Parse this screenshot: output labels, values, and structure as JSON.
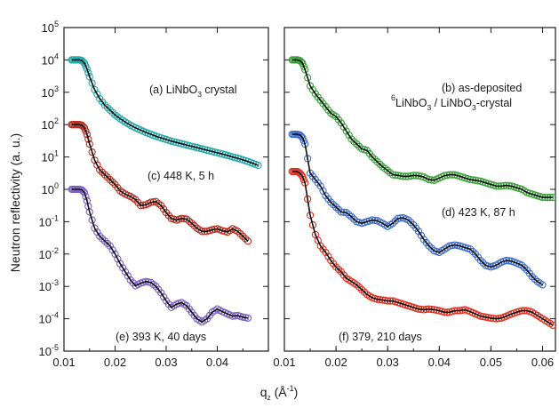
{
  "figure": {
    "ylabel": "Neutron reflectivity (a. u.)",
    "xlabel_main": "q",
    "xlabel_sub": "z",
    "xlabel_unit_open": " (Å",
    "xlabel_unit_exp": "-1",
    "xlabel_unit_close": ")"
  },
  "chart_data": [
    {
      "panel": "left",
      "type": "scatter",
      "xlabel": "q_z (Å^-1)",
      "ylabel": "Neutron reflectivity (a. u.)",
      "yscale": "log",
      "xlim": [
        0.01,
        0.05
      ],
      "ylim": [
        1e-05,
        100000.0
      ],
      "xticks": [
        "0.01",
        "0.02",
        "0.03",
        "0.04"
      ],
      "xtick_values": [
        0.01,
        0.02,
        0.03,
        0.04
      ],
      "yticks": [
        {
          "base": "10",
          "exp": "-5",
          "value": -5
        },
        {
          "base": "10",
          "exp": "-4",
          "value": -4
        },
        {
          "base": "10",
          "exp": "-3",
          "value": -3
        },
        {
          "base": "10",
          "exp": "-2",
          "value": -2
        },
        {
          "base": "10",
          "exp": "-1",
          "value": -1
        },
        {
          "base": "10",
          "exp": "0",
          "value": 0
        },
        {
          "base": "10",
          "exp": "1",
          "value": 1
        },
        {
          "base": "10",
          "exp": "2",
          "value": 2
        },
        {
          "base": "10",
          "exp": "3",
          "value": 3
        },
        {
          "base": "10",
          "exp": "4",
          "value": 4
        },
        {
          "base": "10",
          "exp": "5",
          "value": 5
        }
      ],
      "annotations": {
        "a": {
          "prefix": "(a) LiNbO",
          "sub": "3",
          "suffix": " crystal"
        },
        "c": "(c) 448 K, 5 h",
        "e": "(e) 393 K, 40 days"
      },
      "series": [
        {
          "key": "a",
          "color": "#25a8aa",
          "x": [
            0.0115,
            0.012,
            0.0125,
            0.013,
            0.0135,
            0.014,
            0.0145,
            0.015,
            0.016,
            0.017,
            0.018,
            0.019,
            0.02,
            0.021,
            0.022,
            0.023,
            0.024,
            0.025,
            0.026,
            0.027,
            0.028,
            0.029,
            0.03,
            0.031,
            0.032,
            0.033,
            0.034,
            0.035,
            0.036,
            0.037,
            0.038,
            0.039,
            0.04,
            0.041,
            0.042,
            0.043,
            0.044,
            0.045,
            0.046,
            0.047,
            0.048
          ],
          "y": [
            4,
            4,
            4,
            4,
            3.98,
            3.9,
            3.72,
            3.48,
            3.08,
            2.8,
            2.6,
            2.45,
            2.3,
            2.18,
            2.08,
            1.98,
            1.9,
            1.83,
            1.76,
            1.7,
            1.64,
            1.59,
            1.54,
            1.49,
            1.45,
            1.41,
            1.37,
            1.33,
            1.29,
            1.25,
            1.21,
            1.17,
            1.13,
            1.09,
            1.05,
            1.0,
            0.96,
            0.91,
            0.86,
            0.8,
            0.74
          ]
        },
        {
          "key": "c",
          "color": "#b83020",
          "x": [
            0.0115,
            0.012,
            0.0125,
            0.013,
            0.0135,
            0.014,
            0.0145,
            0.015,
            0.016,
            0.017,
            0.018,
            0.019,
            0.02,
            0.021,
            0.022,
            0.023,
            0.024,
            0.025,
            0.026,
            0.027,
            0.028,
            0.029,
            0.03,
            0.031,
            0.032,
            0.033,
            0.034,
            0.035,
            0.036,
            0.037,
            0.038,
            0.039,
            0.04,
            0.041,
            0.042,
            0.043,
            0.044,
            0.045,
            0.046
          ],
          "y": [
            2,
            2,
            2,
            2,
            1.98,
            1.9,
            1.7,
            1.4,
            0.9,
            0.6,
            0.45,
            0.3,
            0.15,
            -0.05,
            -0.15,
            -0.22,
            -0.32,
            -0.5,
            -0.48,
            -0.4,
            -0.38,
            -0.5,
            -0.72,
            -0.9,
            -0.95,
            -0.9,
            -0.92,
            -1.05,
            -1.2,
            -1.3,
            -1.3,
            -1.25,
            -1.22,
            -1.28,
            -1.32,
            -1.22,
            -1.3,
            -1.45,
            -1.6
          ]
        },
        {
          "key": "e",
          "color": "#7b5fc4",
          "x": [
            0.0115,
            0.012,
            0.0125,
            0.013,
            0.0135,
            0.014,
            0.0145,
            0.015,
            0.016,
            0.017,
            0.018,
            0.019,
            0.02,
            0.021,
            0.022,
            0.023,
            0.024,
            0.025,
            0.026,
            0.027,
            0.028,
            0.029,
            0.03,
            0.031,
            0.032,
            0.033,
            0.034,
            0.035,
            0.036,
            0.037,
            0.038,
            0.039,
            0.04,
            0.041,
            0.042,
            0.043,
            0.044,
            0.045,
            0.046
          ],
          "y": [
            0,
            0,
            0,
            0,
            -0.02,
            -0.1,
            -0.35,
            -0.7,
            -1.2,
            -1.45,
            -1.6,
            -1.75,
            -2.0,
            -2.3,
            -2.55,
            -2.8,
            -2.98,
            -2.9,
            -2.85,
            -2.88,
            -3.0,
            -3.2,
            -3.45,
            -3.65,
            -3.55,
            -3.5,
            -3.6,
            -3.8,
            -4.0,
            -4.1,
            -4.0,
            -3.8,
            -3.7,
            -3.78,
            -3.85,
            -3.92,
            -3.9,
            -3.95,
            -3.98
          ]
        }
      ]
    },
    {
      "panel": "right",
      "type": "scatter",
      "xlabel": "q_z (Å^-1)",
      "yscale": "log",
      "xlim": [
        0.01,
        0.0625
      ],
      "ylim": [
        1e-05,
        100000.0
      ],
      "xticks": [
        "0.01",
        "0.02",
        "0.03",
        "0.04",
        "0.05",
        "0.06"
      ],
      "xtick_values": [
        0.01,
        0.02,
        0.03,
        0.04,
        0.05,
        0.06
      ],
      "annotations": {
        "b1": "(b) as-deposited",
        "b2": {
          "sup": "6",
          "part1": "LiNbO",
          "sub1": "3",
          "part2": " / LiNbO",
          "sub2": "3",
          "part3": "-crystal"
        },
        "d": "(d) 423 K, 87 h",
        "f": "(f) 379, 210 days"
      },
      "series": [
        {
          "key": "b",
          "color": "#3ca03c",
          "x": [
            0.0115,
            0.012,
            0.0125,
            0.013,
            0.0135,
            0.014,
            0.015,
            0.016,
            0.017,
            0.018,
            0.019,
            0.02,
            0.021,
            0.022,
            0.023,
            0.024,
            0.025,
            0.026,
            0.027,
            0.028,
            0.029,
            0.03,
            0.031,
            0.032,
            0.033,
            0.034,
            0.035,
            0.036,
            0.037,
            0.038,
            0.039,
            0.04,
            0.041,
            0.042,
            0.043,
            0.044,
            0.045,
            0.046,
            0.047,
            0.048,
            0.049,
            0.05,
            0.051,
            0.052,
            0.053,
            0.054,
            0.055,
            0.056,
            0.057,
            0.058,
            0.059,
            0.06,
            0.061,
            0.062
          ],
          "y": [
            4,
            4,
            4,
            3.98,
            3.9,
            3.7,
            3.2,
            2.95,
            2.75,
            2.55,
            2.35,
            2.25,
            2.05,
            1.8,
            1.55,
            1.4,
            1.25,
            1.2,
            1.0,
            0.85,
            0.7,
            0.58,
            0.45,
            0.43,
            0.4,
            0.4,
            0.43,
            0.42,
            0.38,
            0.3,
            0.28,
            0.35,
            0.42,
            0.45,
            0.45,
            0.4,
            0.35,
            0.3,
            0.28,
            0.25,
            0.2,
            0.15,
            0.1,
            0.1,
            0.12,
            0.1,
            0.05,
            0.0,
            -0.1,
            -0.15,
            -0.2,
            -0.25,
            -0.25,
            -0.25
          ]
        },
        {
          "key": "d",
          "color": "#3e6ccf",
          "x": [
            0.0115,
            0.012,
            0.0125,
            0.013,
            0.0135,
            0.014,
            0.015,
            0.016,
            0.017,
            0.018,
            0.019,
            0.02,
            0.021,
            0.022,
            0.023,
            0.024,
            0.025,
            0.026,
            0.027,
            0.028,
            0.029,
            0.03,
            0.031,
            0.032,
            0.033,
            0.034,
            0.035,
            0.036,
            0.037,
            0.038,
            0.039,
            0.04,
            0.041,
            0.042,
            0.043,
            0.044,
            0.045,
            0.046,
            0.047,
            0.048,
            0.049,
            0.05,
            0.051,
            0.052,
            0.053,
            0.054,
            0.055,
            0.056,
            0.057,
            0.058,
            0.059,
            0.06
          ],
          "y": [
            1.7,
            1.7,
            1.7,
            1.68,
            1.6,
            1.4,
            0.5,
            0.3,
            0.1,
            -0.2,
            -0.4,
            -0.55,
            -0.7,
            -0.72,
            -0.85,
            -1.0,
            -1.05,
            -1.0,
            -0.95,
            -0.97,
            -1.05,
            -1.15,
            -1.05,
            -0.9,
            -0.88,
            -0.95,
            -1.1,
            -1.3,
            -1.55,
            -1.75,
            -1.9,
            -1.95,
            -1.85,
            -1.75,
            -1.72,
            -1.75,
            -1.8,
            -1.85,
            -2.0,
            -2.2,
            -2.35,
            -2.4,
            -2.35,
            -2.25,
            -2.2,
            -2.22,
            -2.28,
            -2.35,
            -2.5,
            -2.7,
            -2.85,
            -2.95
          ]
        },
        {
          "key": "f",
          "color": "#e03020",
          "x": [
            0.0115,
            0.012,
            0.0125,
            0.013,
            0.0135,
            0.014,
            0.015,
            0.016,
            0.017,
            0.018,
            0.019,
            0.02,
            0.021,
            0.022,
            0.023,
            0.024,
            0.025,
            0.026,
            0.027,
            0.028,
            0.029,
            0.03,
            0.031,
            0.032,
            0.033,
            0.034,
            0.035,
            0.036,
            0.037,
            0.038,
            0.039,
            0.04,
            0.041,
            0.042,
            0.043,
            0.044,
            0.045,
            0.046,
            0.047,
            0.048,
            0.049,
            0.05,
            0.051,
            0.052,
            0.053,
            0.054,
            0.055,
            0.056,
            0.057,
            0.058,
            0.059,
            0.06,
            0.061,
            0.062
          ],
          "y": [
            0.55,
            0.55,
            0.55,
            0.5,
            0.4,
            0.2,
            -0.8,
            -1.4,
            -1.75,
            -1.95,
            -2.2,
            -2.4,
            -2.55,
            -2.75,
            -2.85,
            -2.95,
            -3.1,
            -3.25,
            -3.35,
            -3.4,
            -3.42,
            -3.45,
            -3.45,
            -3.5,
            -3.55,
            -3.6,
            -3.65,
            -3.7,
            -3.72,
            -3.7,
            -3.72,
            -3.75,
            -3.8,
            -3.8,
            -3.75,
            -3.75,
            -3.72,
            -3.78,
            -3.85,
            -3.92,
            -3.95,
            -3.98,
            -4.0,
            -3.98,
            -3.92,
            -3.85,
            -3.8,
            -3.75,
            -3.75,
            -3.8,
            -3.9,
            -4.0,
            -4.1,
            -4.2
          ]
        }
      ]
    }
  ]
}
